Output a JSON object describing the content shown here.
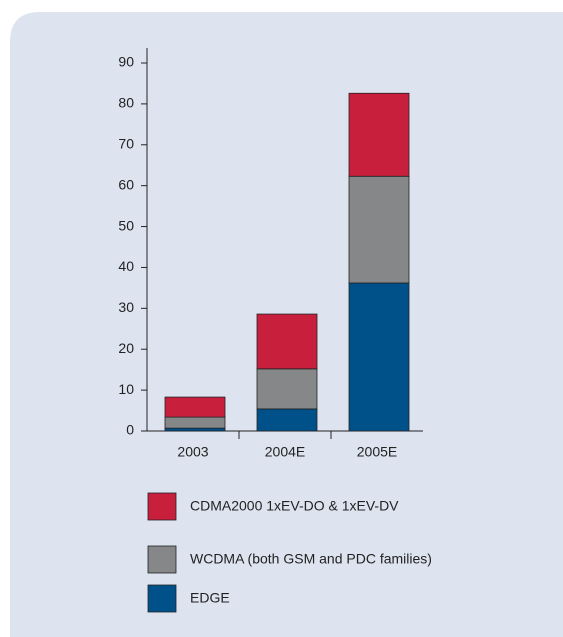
{
  "chart_data": {
    "type": "stacked_bar",
    "categories": [
      "2003",
      "2004E",
      "2005E"
    ],
    "series": [
      {
        "name": "EDGE",
        "color": "#00508a",
        "values": [
          0.7,
          5.4,
          36.2
        ]
      },
      {
        "name": "WCDMA (both GSM and PDC families)",
        "color": "#858789",
        "values": [
          2.7,
          9.8,
          26.1
        ]
      },
      {
        "name": "CDMA2000 1xEV-DO & 1xEV-DV",
        "color": "#c8203c",
        "values": [
          4.9,
          13.4,
          20.3
        ]
      }
    ],
    "ylim": [
      0,
      90
    ],
    "yticks": [
      0,
      10,
      20,
      30,
      40,
      50,
      60,
      70,
      80,
      90
    ]
  }
}
